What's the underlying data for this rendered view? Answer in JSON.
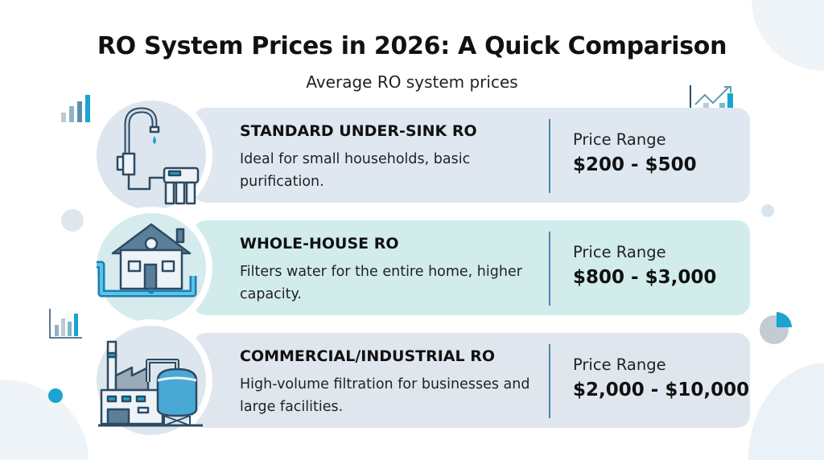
{
  "header": {
    "title": "RO System Prices in 2026: A Quick Comparison",
    "subtitle": "Average RO system prices"
  },
  "colors": {
    "accent": "#1ba3d1",
    "icon_stroke": "#2c4a63",
    "card_1": "#dfe8f1",
    "card_2": "#d2ecec",
    "card_3": "#e0e6ee"
  },
  "systems": [
    {
      "name": "STANDARD UNDER-SINK RO",
      "description": "Ideal for small households, basic purification.",
      "price_label": "Price Range",
      "price": "$200 - $500",
      "icon": "faucet-filter-icon"
    },
    {
      "name": "WHOLE-HOUSE RO",
      "description": "Filters water for the entire home, higher capacity.",
      "price_label": "Price Range",
      "price": "$800 - $3,000",
      "icon": "house-pipes-icon"
    },
    {
      "name": "COMMERCIAL/INDUSTRIAL RO",
      "description": "High-volume filtration for businesses and large facilities.",
      "price_label": "Price Range",
      "price": "$2,000 - $10,000",
      "icon": "factory-tank-icon"
    }
  ],
  "decorations": [
    "bar-chart-icon",
    "trend-chart-icon",
    "pie-chart-icon"
  ]
}
